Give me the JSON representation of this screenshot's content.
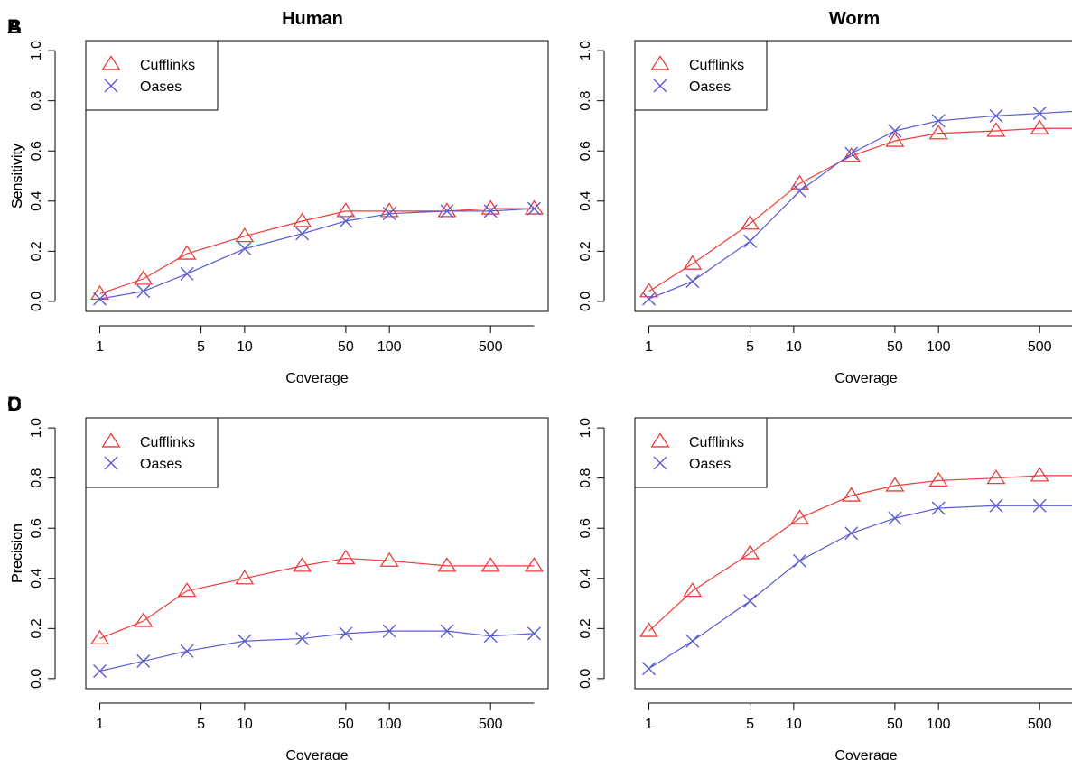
{
  "column_titles": [
    "Human",
    "Worm"
  ],
  "series_colors": {
    "Cufflinks": "#ee3b3b",
    "Oases": "#5b5bd6"
  },
  "chart_data": [
    {
      "type": "line",
      "panel": "A",
      "title": "Human",
      "xlabel": "Coverage",
      "ylabel": "Sensitivity",
      "x_scale": "log",
      "x_ticks": [
        1,
        5,
        10,
        50,
        100,
        500
      ],
      "x_tick_labels": [
        "1",
        "5",
        "10",
        "50",
        "100",
        "500"
      ],
      "y_ticks": [
        0.0,
        0.2,
        0.4,
        0.6,
        0.8,
        1.0
      ],
      "y_tick_labels": [
        "0.0",
        "0.2",
        "0.4",
        "0.6",
        "0.8",
        "1.0"
      ],
      "ylim": [
        0,
        1
      ],
      "x": [
        1,
        2,
        4,
        10,
        25,
        50,
        100,
        250,
        500,
        1000
      ],
      "legend": "top-left",
      "series": [
        {
          "name": "Cufflinks",
          "marker": "triangle",
          "values": [
            0.03,
            0.09,
            0.19,
            0.26,
            0.32,
            0.36,
            0.36,
            0.36,
            0.37,
            0.37
          ]
        },
        {
          "name": "Oases",
          "marker": "x",
          "values": [
            0.01,
            0.04,
            0.11,
            0.21,
            0.27,
            0.32,
            0.35,
            0.36,
            0.36,
            0.37
          ]
        }
      ]
    },
    {
      "type": "line",
      "panel": "B",
      "title": "Worm",
      "xlabel": "Coverage",
      "ylabel": "Sensitivity",
      "x_scale": "log",
      "x_ticks": [
        1,
        5,
        10,
        50,
        100,
        500
      ],
      "x_tick_labels": [
        "1",
        "5",
        "10",
        "50",
        "100",
        "500"
      ],
      "y_ticks": [
        0.0,
        0.2,
        0.4,
        0.6,
        0.8,
        1.0
      ],
      "y_tick_labels": [
        "0.0",
        "0.2",
        "0.4",
        "0.6",
        "0.8",
        "1.0"
      ],
      "ylim": [
        0,
        1
      ],
      "x": [
        1,
        2,
        5,
        11,
        25,
        50,
        100,
        250,
        500,
        1000
      ],
      "legend": "top-left",
      "series": [
        {
          "name": "Cufflinks",
          "marker": "triangle",
          "values": [
            0.04,
            0.15,
            0.31,
            0.47,
            0.58,
            0.64,
            0.67,
            0.68,
            0.69,
            0.69
          ]
        },
        {
          "name": "Oases",
          "marker": "x",
          "values": [
            0.01,
            0.08,
            0.24,
            0.44,
            0.59,
            0.68,
            0.72,
            0.74,
            0.75,
            0.76
          ]
        }
      ]
    },
    {
      "type": "line",
      "panel": "C",
      "title": "",
      "xlabel": "Coverage",
      "ylabel": "Precision",
      "x_scale": "log",
      "x_ticks": [
        1,
        5,
        10,
        50,
        100,
        500
      ],
      "x_tick_labels": [
        "1",
        "5",
        "10",
        "50",
        "100",
        "500"
      ],
      "y_ticks": [
        0.0,
        0.2,
        0.4,
        0.6,
        0.8,
        1.0
      ],
      "y_tick_labels": [
        "0.0",
        "0.2",
        "0.4",
        "0.6",
        "0.8",
        "1.0"
      ],
      "ylim": [
        0,
        1
      ],
      "x": [
        1,
        2,
        4,
        10,
        25,
        50,
        100,
        250,
        500,
        1000
      ],
      "legend": "top-left",
      "series": [
        {
          "name": "Cufflinks",
          "marker": "triangle",
          "values": [
            0.16,
            0.23,
            0.35,
            0.4,
            0.45,
            0.48,
            0.47,
            0.45,
            0.45,
            0.45
          ]
        },
        {
          "name": "Oases",
          "marker": "x",
          "values": [
            0.03,
            0.07,
            0.11,
            0.15,
            0.16,
            0.18,
            0.19,
            0.19,
            0.17,
            0.18
          ]
        }
      ]
    },
    {
      "type": "line",
      "panel": "D",
      "title": "",
      "xlabel": "Coverage",
      "ylabel": "Precision",
      "x_scale": "log",
      "x_ticks": [
        1,
        5,
        10,
        50,
        100,
        500
      ],
      "x_tick_labels": [
        "1",
        "5",
        "10",
        "50",
        "100",
        "500"
      ],
      "y_ticks": [
        0.0,
        0.2,
        0.4,
        0.6,
        0.8,
        1.0
      ],
      "y_tick_labels": [
        "0.0",
        "0.2",
        "0.4",
        "0.6",
        "0.8",
        "1.0"
      ],
      "ylim": [
        0,
        1
      ],
      "x": [
        1,
        2,
        5,
        11,
        25,
        50,
        100,
        250,
        500,
        1000
      ],
      "legend": "top-left",
      "series": [
        {
          "name": "Cufflinks",
          "marker": "triangle",
          "values": [
            0.19,
            0.35,
            0.5,
            0.64,
            0.73,
            0.77,
            0.79,
            0.8,
            0.81,
            0.81
          ]
        },
        {
          "name": "Oases",
          "marker": "x",
          "values": [
            0.04,
            0.15,
            0.31,
            0.47,
            0.58,
            0.64,
            0.68,
            0.69,
            0.69,
            0.69
          ]
        }
      ]
    }
  ]
}
